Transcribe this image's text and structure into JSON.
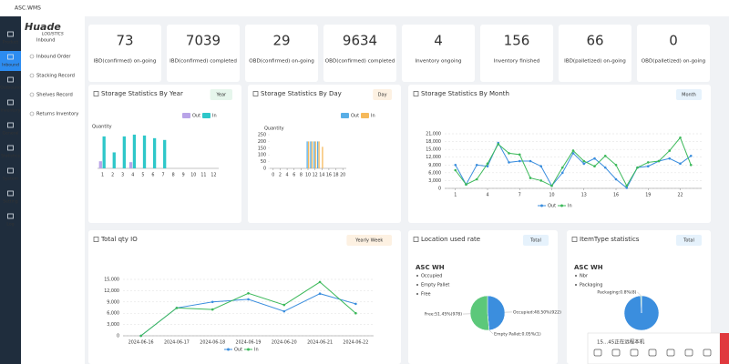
{
  "app": {
    "title": "ASC.WMS"
  },
  "sidebar": {
    "logo": "Huade",
    "logo_sub": "LOGISTICS",
    "section": "Inbound",
    "menu": [
      "Product",
      "Inbound",
      "Outbound",
      "Inventory",
      "General",
      "Statistics",
      "System",
      "Setting",
      "Log"
    ],
    "submenu": [
      "Inbound Order",
      "Stacking Record",
      "Shelves Record",
      "Returns Inventory"
    ]
  },
  "cards": [
    {
      "value": 73,
      "label": "IBD(confirmed) on-going",
      "color": "#6cc070"
    },
    {
      "value": 7039,
      "label": "IBD(confirmed) completed",
      "color": "#5bb8e6"
    },
    {
      "value": 29,
      "label": "OBD(confirmed) on-going",
      "color": "#2f6fc4"
    },
    {
      "value": 9634,
      "label": "OBD(confirmed) completed",
      "color": "#f0b060"
    },
    {
      "value": 4,
      "label": "Inventory ongoing",
      "color": "#4cc8b8"
    },
    {
      "value": 156,
      "label": "Inventory finished",
      "color": "#9b7fd6"
    },
    {
      "value": 66,
      "label": "IBD(palletized) on-going",
      "color": "#e680b8"
    },
    {
      "value": 0,
      "label": "OBD(palletized) on-going",
      "color": "#f2c94c"
    }
  ],
  "charts": [
    {
      "type": "bar",
      "title": "Storage Statistics By Year",
      "button": "Year",
      "y_label": "Quantity",
      "categories": [
        1,
        2,
        3,
        4,
        5,
        6,
        7,
        8,
        9,
        10,
        11,
        12
      ],
      "ylim": [
        0,
        200
      ],
      "series": [
        {
          "name": "Out",
          "color": "#b9a4e8",
          "values": [
            40,
            0,
            0,
            35,
            0,
            0,
            0,
            0,
            0,
            0,
            0,
            0
          ]
        },
        {
          "name": "In",
          "color": "#2ec7c9",
          "values": [
            180,
            90,
            180,
            190,
            185,
            170,
            160,
            0,
            0,
            0,
            0,
            0
          ]
        }
      ]
    },
    {
      "type": "bar",
      "title": "Storage Statistics By Day",
      "button": "Day",
      "y_label": "Quantity",
      "x": [
        10,
        11,
        12,
        13,
        14
      ],
      "xlim": [
        -1,
        21
      ],
      "xticks": [
        0,
        2,
        4,
        6,
        8,
        10,
        12,
        14,
        16,
        18,
        20
      ],
      "ylim": [
        0,
        250
      ],
      "yticks": [
        0,
        50,
        100,
        150,
        200,
        250
      ],
      "series": [
        {
          "name": "Out",
          "color": "#5aaee6",
          "values": [
            200,
            200,
            200,
            200,
            0
          ]
        },
        {
          "name": "In",
          "color": "#f5b95c",
          "values": [
            200,
            200,
            200,
            200,
            160
          ]
        }
      ]
    },
    {
      "type": "line",
      "title": "Storage Statistics By Month",
      "button": "Month",
      "grid": true,
      "x": [
        1,
        2,
        3,
        4,
        5,
        6,
        7,
        8,
        9,
        10,
        11,
        12,
        13,
        14,
        15,
        16,
        17,
        18,
        19,
        20,
        21,
        22,
        23
      ],
      "xlim": [
        0,
        24
      ],
      "xticks": [
        1,
        4,
        7,
        10,
        13,
        16,
        19,
        22
      ],
      "ylim": [
        0,
        21000
      ],
      "yticks": [
        0,
        {
          "value": 3000,
          "label": "3,000"
        },
        {
          "value": 6000,
          "label": "6,000"
        },
        {
          "value": 9000,
          "label": "9,000"
        },
        {
          "value": 12000,
          "label": "12,000"
        },
        {
          "value": 15000,
          "label": "15,000"
        },
        {
          "value": 18000,
          "label": "18,000"
        },
        {
          "value": 21000,
          "label": "21,000"
        }
      ],
      "series": [
        {
          "name": "Out",
          "color": "#3b8ede",
          "values": [
            9000,
            1500,
            9000,
            8500,
            17500,
            10000,
            10500,
            10500,
            8500,
            1000,
            6000,
            13500,
            9500,
            11500,
            8000,
            3500,
            200,
            8000,
            8500,
            10500,
            11500,
            9500,
            12500
          ]
        },
        {
          "name": "In",
          "color": "#3cb95a",
          "values": [
            7000,
            1500,
            3500,
            9500,
            17000,
            13500,
            13000,
            4000,
            3000,
            1000,
            8000,
            14500,
            10500,
            8500,
            12500,
            9000,
            1000,
            8000,
            10000,
            10500,
            14500,
            19500,
            9000
          ]
        }
      ]
    },
    {
      "type": "line",
      "title": "Total qty IO",
      "button": "Yearly Week",
      "grid": true,
      "categories": [
        "2024-06-16",
        "2024-06-17",
        "2024-06-18",
        "2024-06-19",
        "2024-06-20",
        "2024-06-21",
        "2024-06-22"
      ],
      "ylim": [
        0,
        15000
      ],
      "yticks": [
        0,
        {
          "value": 3000,
          "label": "3,000"
        },
        {
          "value": 6000,
          "label": "6,000"
        },
        {
          "value": 9000,
          "label": "9,000"
        },
        {
          "value": 12000,
          "label": "12,000"
        },
        {
          "value": 15000,
          "label": "15,000"
        }
      ],
      "series": [
        {
          "name": "Out",
          "color": "#3b8ede",
          "values": [
            0,
            7400,
            9000,
            9700,
            6500,
            11200,
            8500
          ]
        },
        {
          "name": "In",
          "color": "#3cb95a",
          "values": [
            0,
            7400,
            7000,
            11300,
            8200,
            14300,
            6000
          ]
        }
      ]
    },
    {
      "type": "pie",
      "title": "Location used rate",
      "button": "Total",
      "subtitle": "ASC WH",
      "categories": [
        "Occupied",
        "Empty Pallet",
        "Free"
      ],
      "values": [
        48.5,
        0.05,
        51.45
      ],
      "value_labels": [
        "Occupied:48.50%(922)",
        "Empty Pallet:0.05%(1)",
        "Free:51.45%(978)"
      ],
      "colors": [
        "#3b8ede",
        "#f5b95c",
        "#5cc87a"
      ]
    },
    {
      "type": "pie",
      "title": "ItemType statistics",
      "button": "Total",
      "subtitle": "ASC WH",
      "categories": [
        "Nbr",
        "Packaging"
      ],
      "values": [
        99.2,
        0.8
      ],
      "value_labels": [
        "Nbr:99.2%",
        "Packaging:0.8%(8)"
      ],
      "colors": [
        "#3b8ede",
        "#5cc87a"
      ]
    }
  ],
  "overlay": {
    "text": "15...45正在远程本机"
  }
}
